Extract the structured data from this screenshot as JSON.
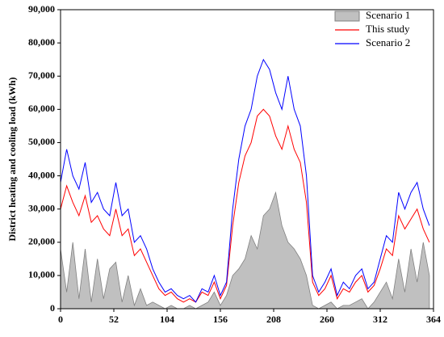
{
  "chart_data": {
    "type": "line",
    "ylabel": "District heating and cooling load (kWh)",
    "x": [
      0,
      6,
      12,
      18,
      24,
      30,
      36,
      42,
      48,
      54,
      60,
      66,
      72,
      78,
      84,
      90,
      96,
      102,
      108,
      114,
      120,
      126,
      132,
      138,
      144,
      150,
      156,
      162,
      168,
      174,
      180,
      186,
      192,
      198,
      204,
      210,
      216,
      222,
      228,
      234,
      240,
      246,
      252,
      258,
      264,
      270,
      276,
      282,
      288,
      294,
      300,
      306,
      312,
      318,
      324,
      330,
      336,
      342,
      348,
      354,
      360
    ],
    "series": [
      {
        "name": "Scenario 1",
        "color": "#c0c0c0",
        "style": "area",
        "values": [
          18000,
          5000,
          20000,
          3000,
          18000,
          2000,
          15000,
          3000,
          12000,
          14000,
          2000,
          10000,
          1000,
          6000,
          1000,
          2000,
          1000,
          0,
          1000,
          0,
          0,
          1000,
          0,
          1000,
          2000,
          5000,
          1000,
          4000,
          10000,
          12000,
          15000,
          22000,
          18000,
          28000,
          30000,
          35000,
          25000,
          20000,
          18000,
          15000,
          10000,
          1000,
          0,
          1000,
          2000,
          0,
          1000,
          1000,
          2000,
          3000,
          0,
          2000,
          5000,
          8000,
          3000,
          15000,
          5000,
          18000,
          8000,
          20000,
          10000
        ]
      },
      {
        "name": "This study",
        "color": "#ff0000",
        "style": "line",
        "values": [
          30000,
          37000,
          32000,
          28000,
          34000,
          26000,
          28000,
          24000,
          22000,
          30000,
          22000,
          24000,
          16000,
          18000,
          14000,
          10000,
          6000,
          4000,
          5000,
          3000,
          2000,
          3000,
          2000,
          5000,
          4000,
          8000,
          3000,
          7000,
          25000,
          38000,
          46000,
          50000,
          58000,
          60000,
          58000,
          52000,
          48000,
          55000,
          48000,
          44000,
          32000,
          8000,
          4000,
          6000,
          10000,
          3000,
          6000,
          5000,
          8000,
          10000,
          5000,
          7000,
          12000,
          18000,
          16000,
          28000,
          24000,
          27000,
          30000,
          24000,
          20000
        ]
      },
      {
        "name": "Scenario 2",
        "color": "#0000ff",
        "style": "line",
        "values": [
          38000,
          48000,
          40000,
          36000,
          44000,
          32000,
          35000,
          30000,
          28000,
          38000,
          28000,
          30000,
          20000,
          22000,
          18000,
          12000,
          8000,
          5000,
          6000,
          4000,
          3000,
          4000,
          2000,
          6000,
          5000,
          10000,
          4000,
          8000,
          30000,
          45000,
          55000,
          60000,
          70000,
          75000,
          72000,
          65000,
          60000,
          70000,
          60000,
          55000,
          40000,
          10000,
          5000,
          8000,
          12000,
          4000,
          8000,
          6000,
          10000,
          12000,
          6000,
          8000,
          15000,
          22000,
          20000,
          35000,
          30000,
          35000,
          38000,
          30000,
          25000
        ]
      }
    ],
    "xlim": [
      0,
      364
    ],
    "xticks": [
      0,
      52,
      104,
      156,
      208,
      260,
      312,
      364
    ],
    "ylim": [
      0,
      90000
    ],
    "yticks": [
      {
        "value": 0,
        "label": "0"
      },
      {
        "value": 10000,
        "label": "10,000"
      },
      {
        "value": 20000,
        "label": "20,000"
      },
      {
        "value": 30000,
        "label": "30,000"
      },
      {
        "value": 40000,
        "label": "40,000"
      },
      {
        "value": 50000,
        "label": "50,000"
      },
      {
        "value": 60000,
        "label": "60,000"
      },
      {
        "value": 70000,
        "label": "70,000"
      },
      {
        "value": 80000,
        "label": "80,000"
      },
      {
        "value": 90000,
        "label": "90,000"
      }
    ],
    "legend": "upper right"
  }
}
